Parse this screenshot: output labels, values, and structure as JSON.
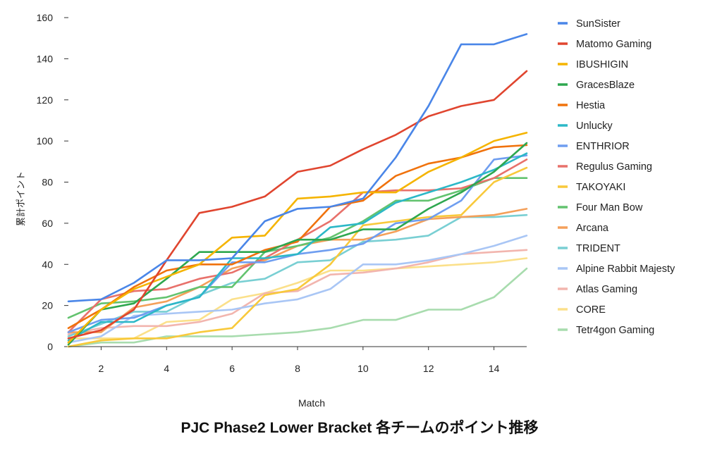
{
  "chart_data": {
    "type": "line",
    "title": "PJC Phase2 Lower Bracket 各チームのポイント推移",
    "xlabel": "Match",
    "ylabel": "累計ポイント",
    "xlim": [
      1,
      15
    ],
    "ylim": [
      0,
      160
    ],
    "xticks": [
      2,
      4,
      6,
      8,
      10,
      12,
      14
    ],
    "yticks": [
      0,
      20,
      40,
      60,
      80,
      100,
      120,
      140,
      160
    ],
    "grid": false,
    "legend_position": "right",
    "x": [
      1,
      2,
      3,
      4,
      5,
      6,
      7,
      8,
      9,
      10,
      11,
      12,
      13,
      14,
      15
    ],
    "series": [
      {
        "name": "SunSister",
        "color": "#4a86e8",
        "values": [
          22,
          23,
          31,
          42,
          42,
          43,
          61,
          67,
          68,
          72,
          92,
          117,
          147,
          147,
          152
        ]
      },
      {
        "name": "Matomo Gaming",
        "color": "#e0452f",
        "values": [
          4,
          8,
          18,
          42,
          65,
          68,
          73,
          85,
          88,
          96,
          103,
          112,
          117,
          120,
          134
        ]
      },
      {
        "name": "IBUSHIGIN",
        "color": "#f5b400",
        "values": [
          2,
          18,
          28,
          34,
          40,
          53,
          54,
          72,
          73,
          75,
          75,
          85,
          92,
          100,
          104
        ]
      },
      {
        "name": "GracesBlaze",
        "color": "#2ea74f",
        "values": [
          1,
          18,
          21,
          33,
          46,
          46,
          46,
          52,
          52,
          57,
          57,
          67,
          75,
          85,
          99
        ]
      },
      {
        "name": "Hestia",
        "color": "#f0720c",
        "values": [
          9,
          18,
          29,
          37,
          40,
          40,
          47,
          51,
          68,
          71,
          83,
          89,
          92,
          97,
          98
        ]
      },
      {
        "name": "Unlucky",
        "color": "#2cb8c7",
        "values": [
          3,
          12,
          12,
          20,
          24,
          43,
          43,
          45,
          58,
          60,
          70,
          75,
          80,
          86,
          94
        ]
      },
      {
        "name": "ENTHRIOR",
        "color": "#6f9ef0",
        "values": [
          7,
          13,
          14,
          20,
          24,
          41,
          41,
          45,
          47,
          50,
          60,
          62,
          71,
          91,
          93
        ]
      },
      {
        "name": "Regulus Gaming",
        "color": "#e8716b",
        "values": [
          7,
          23,
          27,
          28,
          33,
          36,
          43,
          52,
          61,
          75,
          76,
          76,
          77,
          82,
          91
        ]
      },
      {
        "name": "TAKOYAKI",
        "color": "#f8c93b",
        "values": [
          0,
          3,
          4,
          4,
          7,
          9,
          25,
          28,
          40,
          59,
          61,
          63,
          64,
          80,
          87
        ]
      },
      {
        "name": "Four Man Bow",
        "color": "#63c36f",
        "values": [
          14,
          21,
          22,
          24,
          29,
          29,
          46,
          49,
          53,
          61,
          71,
          71,
          76,
          82,
          82
        ]
      },
      {
        "name": "Arcana",
        "color": "#f4a05a",
        "values": [
          7,
          7,
          19,
          22,
          29,
          38,
          42,
          49,
          52,
          52,
          56,
          62,
          63,
          64,
          67
        ]
      },
      {
        "name": "TRIDENT",
        "color": "#79cfd3",
        "values": [
          5,
          11,
          17,
          17,
          25,
          31,
          33,
          41,
          42,
          51,
          52,
          54,
          63,
          63,
          64
        ]
      },
      {
        "name": "Alpine Rabbit Majesty",
        "color": "#a9c6f5",
        "values": [
          2,
          5,
          15,
          16,
          17,
          18,
          21,
          23,
          28,
          40,
          40,
          42,
          45,
          49,
          54
        ]
      },
      {
        "name": "Atlas Gaming",
        "color": "#f2b5ae",
        "values": [
          6,
          9,
          10,
          10,
          12,
          16,
          26,
          27,
          35,
          36,
          38,
          41,
          45,
          46,
          47
        ]
      },
      {
        "name": "CORE",
        "color": "#fbe08a",
        "values": [
          4,
          4,
          4,
          12,
          13,
          23,
          26,
          31,
          37,
          37,
          38,
          39,
          40,
          41,
          43
        ]
      },
      {
        "name": "Tetr4gon Gaming",
        "color": "#a8dcae",
        "values": [
          0,
          2,
          2,
          5,
          5,
          5,
          6,
          7,
          9,
          13,
          13,
          18,
          18,
          24,
          38
        ]
      }
    ]
  }
}
